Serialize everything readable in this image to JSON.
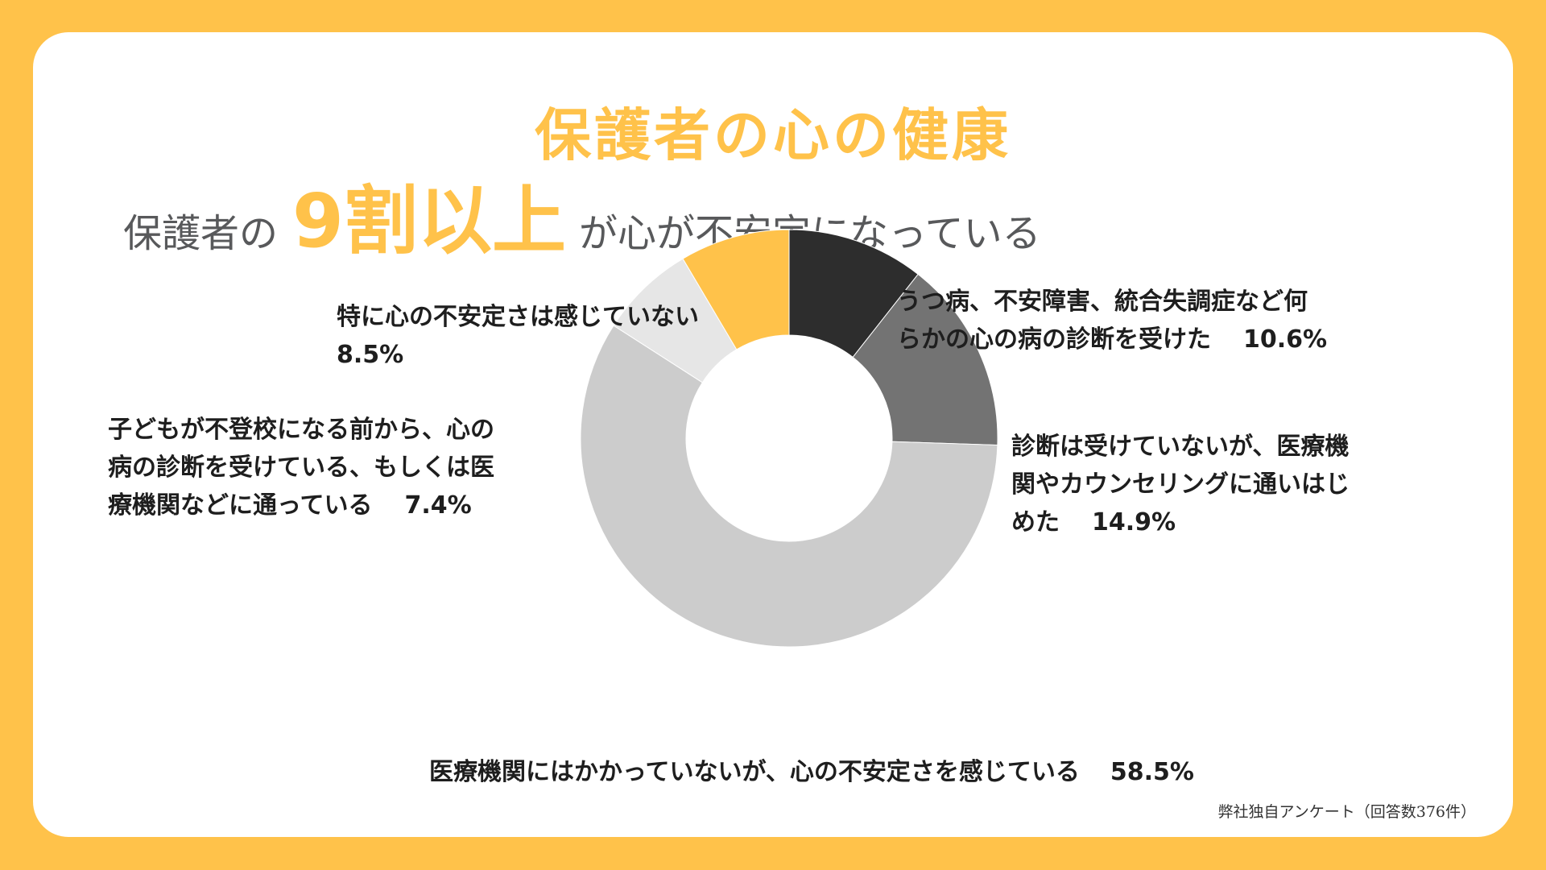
{
  "header": {
    "title": "保護者の心の健康",
    "subtitle_prefix": "保護者の",
    "subtitle_highlight": "9割以上",
    "subtitle_suffix": "が心が不安定になっている"
  },
  "colors": {
    "background": "#FFC24A",
    "accent": "#FFC24A",
    "card": "#FFFFFF"
  },
  "chart_data": {
    "type": "pie",
    "donut": true,
    "title": "",
    "categories": [
      "うつ病、不安障害、統合失調症など何らかの心の病の診断を受けた",
      "診断は受けていないが、医療機関やカウンセリングに通いはじめた",
      "医療機関にはかかっていないが、心の不安定さを感じている",
      "子どもが不登校になる前から、心の病の診断を受けている、もしくは医療機関などに通っている",
      "特に心の不安定さは感じていない"
    ],
    "values": [
      10.6,
      14.9,
      58.5,
      7.4,
      8.5
    ],
    "colors": [
      "#2D2D2D",
      "#737373",
      "#CCCCCC",
      "#E6E6E6",
      "#FFC24A"
    ],
    "legend": "none"
  },
  "labels": {
    "depression": {
      "line1": "うつ病、不安障害、統合失調症など何",
      "line2": "らかの心の病の診断を受けた",
      "pct": "10.6%"
    },
    "started_clinic": {
      "line1": "診断は受けていないが、医療機",
      "line2": "関やカウンセリングに通いはじ",
      "line3": "めた",
      "pct": "14.9%"
    },
    "unstable_no_clinic": {
      "text": "医療機関にはかかっていないが、心の不安定さを感じている",
      "pct": "58.5%"
    },
    "before_truancy": {
      "line1": "子どもが不登校になる前から、心の",
      "line2": "病の診断を受けている、もしくは医",
      "line3": "療機関などに通っている",
      "pct": "7.4%"
    },
    "not_unstable": {
      "line1": "特に心の不安定さは感じていない",
      "pct": "8.5%"
    }
  },
  "source": "弊社独自アンケート（回答数376件）"
}
